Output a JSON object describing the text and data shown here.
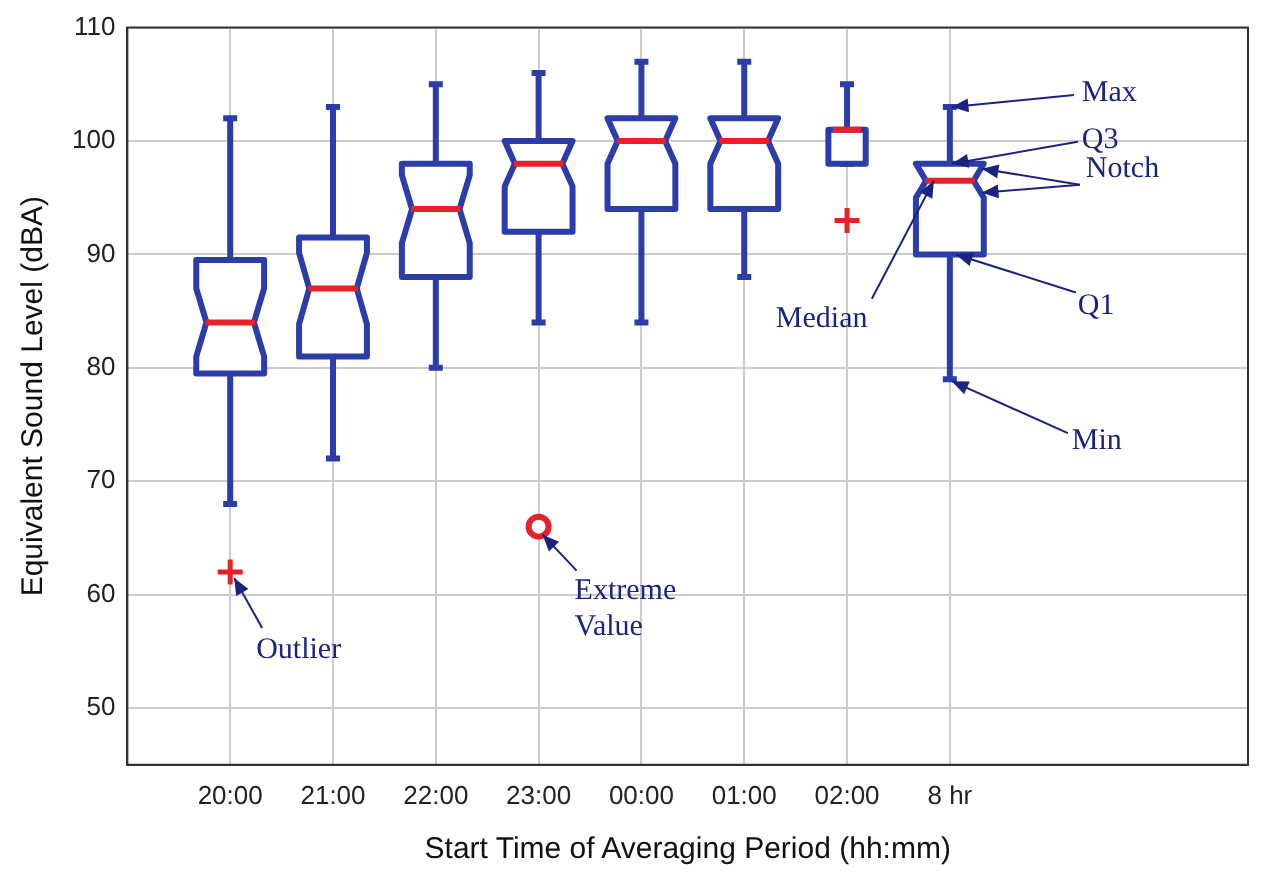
{
  "chart_data": {
    "type": "box",
    "xlabel": "Start Time of Averaging Period (hh:mm)",
    "ylabel": "Equivalent Sound Level (dBA)",
    "categories": [
      "20:00",
      "21:00",
      "22:00",
      "23:00",
      "00:00",
      "01:00",
      "02:00",
      "8 hr"
    ],
    "ylim": [
      45,
      110
    ],
    "yticks": [
      50,
      60,
      70,
      80,
      90,
      100,
      110
    ],
    "grid": true,
    "legend": false,
    "boxes": [
      {
        "low": 68,
        "q1": 79.5,
        "median": 84,
        "q3": 89.5,
        "high": 102,
        "outliers": [
          62
        ]
      },
      {
        "low": 72,
        "q1": 81,
        "median": 87,
        "q3": 91.5,
        "high": 103
      },
      {
        "low": 80,
        "q1": 88,
        "median": 94,
        "q3": 98,
        "high": 105
      },
      {
        "low": 84,
        "q1": 92,
        "median": 98,
        "q3": 100,
        "high": 106
      },
      {
        "low": 84,
        "q1": 94,
        "median": 100,
        "q3": 102,
        "high": 107
      },
      {
        "low": 88,
        "q1": 94,
        "median": 100,
        "q3": 102,
        "high": 107
      },
      {
        "low": 98,
        "q1": 98,
        "median": 101,
        "q3": 101,
        "high": 105,
        "outliers": [
          93
        ]
      },
      {
        "low": 79,
        "q1": 90,
        "median": 96.5,
        "q3": 98,
        "high": 103
      }
    ],
    "series": [
      {
        "type": "scatter",
        "x": [
          "23:00"
        ],
        "values": [
          66
        ],
        "color": "#e8202a",
        "marker": "circle"
      }
    ],
    "annotations": [
      "Outlier",
      {
        "text": "Extreme Value",
        "x": "23:00",
        "y": 66
      },
      {
        "text": "Max",
        "x": "8 hr",
        "y": 103
      },
      {
        "text": "Q3",
        "x": "8 hr",
        "y": 98
      },
      {
        "text": "Notch",
        "x": "8 hr",
        "y": 96.5
      },
      {
        "text": "Median",
        "x": "8 hr",
        "y": 96.5
      },
      {
        "text": "Q1",
        "x": "8 hr",
        "y": 90
      },
      {
        "text": "Min",
        "x": "8 hr",
        "y": 79
      }
    ]
  }
}
